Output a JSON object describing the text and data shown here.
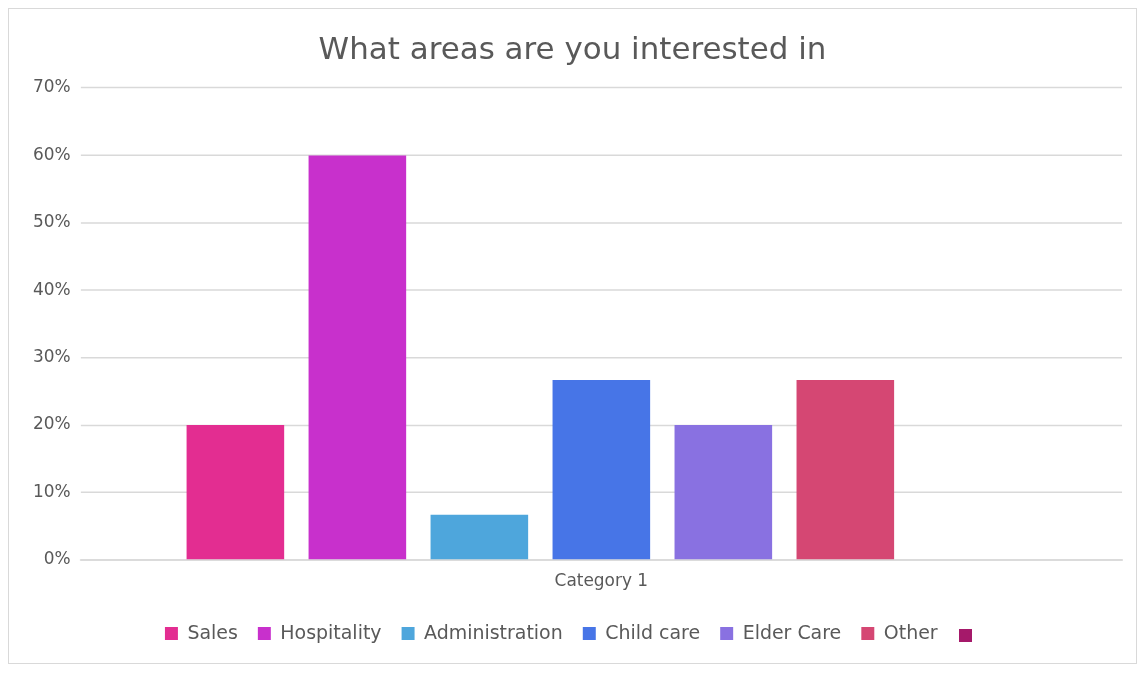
{
  "chart_data": {
    "type": "bar",
    "title": "What areas are you interested in",
    "categories": [
      "Category 1"
    ],
    "series": [
      {
        "name": "Sales",
        "color": "#e32d91",
        "values": [
          20
        ]
      },
      {
        "name": "Hospitality",
        "color": "#c830cc",
        "values": [
          60
        ]
      },
      {
        "name": "Administration",
        "color": "#4ea6dc",
        "values": [
          6.7
        ]
      },
      {
        "name": "Child care",
        "color": "#4775e7",
        "values": [
          26.7
        ]
      },
      {
        "name": "Elder Care",
        "color": "#8971e1",
        "values": [
          20
        ]
      },
      {
        "name": "Other",
        "color": "#d54773",
        "values": [
          26.7
        ]
      },
      {
        "color": "#a5196a",
        "values": [
          null
        ]
      }
    ],
    "ylim": [
      0,
      70
    ],
    "yticks": [
      {
        "value": 0,
        "label": "0%"
      },
      {
        "value": 10,
        "label": "10%"
      },
      {
        "value": 20,
        "label": "20%"
      },
      {
        "value": 30,
        "label": "30%"
      },
      {
        "value": 40,
        "label": "40%"
      },
      {
        "value": 50,
        "label": "50%"
      },
      {
        "value": 60,
        "label": "60%"
      },
      {
        "value": 70,
        "label": "70%"
      }
    ],
    "grid": "y",
    "legend": "bottom"
  }
}
